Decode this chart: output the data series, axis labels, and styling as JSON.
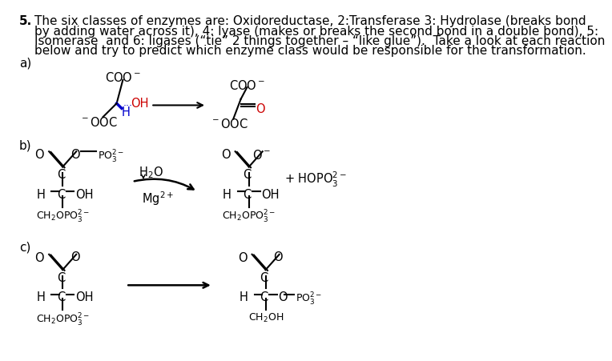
{
  "background_color": "#ffffff",
  "text_color": "#000000",
  "red_color": "#cc0000",
  "blue_color": "#0000cc",
  "title_number": "5.",
  "main_text_line1": "The six classes of enzymes are: Oxidoreductase, 2:Transferase 3: Hydrolase (breaks bond",
  "main_text_line2": "by adding water across it), 4: lyase (makes or breaks the second bond in a double bond), 5:",
  "main_text_line3": "Isomerase  and 6: ligases (“tie” 2 things together – “like glue”).  Take a look at each reaction",
  "main_text_line4": "below and try to predict which enzyme class would be responsible for the transformation.",
  "label_a": "a)",
  "label_b": "b)",
  "label_c": "c)",
  "font_size_main": 11.0,
  "font_size_chem": 10.5,
  "font_size_chem_small": 9.0
}
